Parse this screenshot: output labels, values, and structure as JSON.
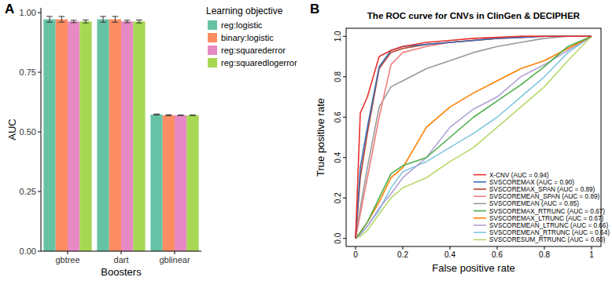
{
  "chart_data": [
    {
      "type": "bar",
      "annotations": [
        "A"
      ],
      "x_label": "Boosters",
      "y_label": "AUC",
      "legend_title": "Learning objective",
      "legend": "right",
      "grid": false,
      "categories": [
        "gbtree",
        "dart",
        "gblinear"
      ],
      "ylim": [
        0,
        1.02
      ],
      "yticks": [
        {
          "value": 0,
          "label": "0.00"
        },
        {
          "value": 0.25,
          "label": "0.25"
        },
        {
          "value": 0.5,
          "label": "0.50"
        },
        {
          "value": 0.75,
          "label": "0.75"
        },
        {
          "value": 1,
          "label": "1.00"
        }
      ],
      "series": [
        {
          "name": "reg:logistic",
          "color": "#66c2a5",
          "values": [
            0.972,
            0.972,
            0.573
          ],
          "errors": [
            0.012,
            0.012,
            0.002
          ]
        },
        {
          "name": "binary:logistic",
          "color": "#fc8d62",
          "values": [
            0.972,
            0.972,
            0.57
          ],
          "errors": [
            0.012,
            0.012,
            0.002
          ]
        },
        {
          "name": "reg:squarederror",
          "color": "#e78ac3",
          "values": [
            0.963,
            0.963,
            0.57
          ],
          "errors": [
            0.005,
            0.005,
            0.001
          ]
        },
        {
          "name": "reg:squaredlogerror",
          "color": "#a6d854",
          "values": [
            0.963,
            0.963,
            0.57
          ],
          "errors": [
            0.006,
            0.006,
            0.001
          ]
        }
      ]
    },
    {
      "type": "line",
      "annotations": [
        "B"
      ],
      "title": "The ROC curve for CNVs in ClinGen & DECIPHER",
      "x_label": "False positive rate",
      "y_label": "True positive rate",
      "legend": "bottom-right",
      "grid": false,
      "xlim": [
        -0.04,
        1.04
      ],
      "ylim": [
        -0.04,
        1.04
      ],
      "xticks": [
        0,
        {
          "value": 0.2,
          "label": "0.2"
        },
        {
          "value": 0.4,
          "label": "0.4"
        },
        {
          "value": 0.6,
          "label": "0.6"
        },
        {
          "value": 0.8,
          "label": "0.8"
        },
        1
      ],
      "yticks": [
        {
          "value": 0,
          "label": "0.0"
        },
        {
          "value": 0.2,
          "label": "0.2"
        },
        {
          "value": 0.4,
          "label": "0.4"
        },
        {
          "value": 0.6,
          "label": "0.6"
        },
        {
          "value": 0.8,
          "label": "0.8"
        },
        {
          "value": 1,
          "label": "1.0"
        }
      ],
      "x": [
        0,
        0.02,
        0.05,
        0.1,
        0.15,
        0.2,
        0.3,
        0.4,
        0.5,
        0.6,
        0.7,
        0.8,
        0.9,
        1
      ],
      "series": [
        {
          "name": "X-CNV (AUC = 0.94)",
          "color": "#e8312f",
          "values": [
            0,
            0.62,
            0.7,
            0.9,
            0.93,
            0.95,
            0.97,
            0.98,
            0.99,
            0.995,
            1,
            1,
            1,
            1
          ]
        },
        {
          "name": "SVSCOREMAX (AUC = 0.90)",
          "color": "#3a6fb5",
          "values": [
            0,
            0.35,
            0.55,
            0.85,
            0.93,
            0.95,
            0.96,
            0.97,
            0.98,
            0.99,
            0.995,
            1,
            1,
            1
          ]
        },
        {
          "name": "SVSCOREMAX_SPAN (AUC = 0.89)",
          "color": "#b5452c",
          "values": [
            0,
            0.3,
            0.52,
            0.84,
            0.92,
            0.94,
            0.96,
            0.97,
            0.98,
            0.99,
            0.995,
            1,
            1,
            1
          ]
        },
        {
          "name": "SVSCOREMEAN_SPAN (AUC = 0.89)",
          "color": "#f08080",
          "values": [
            0,
            0.12,
            0.3,
            0.6,
            0.86,
            0.92,
            0.95,
            0.97,
            0.98,
            0.99,
            1,
            1,
            1,
            1
          ]
        },
        {
          "name": "SVSCOREMEAN (AUC = 0.85)",
          "color": "#999999",
          "values": [
            0,
            0.15,
            0.35,
            0.65,
            0.75,
            0.78,
            0.84,
            0.88,
            0.92,
            0.95,
            0.97,
            0.99,
            1,
            1
          ]
        },
        {
          "name": "SVSCOREMAX_RTRUNC (AUC = 0.67)",
          "color": "#4daf4a",
          "values": [
            0,
            0.03,
            0.08,
            0.2,
            0.32,
            0.36,
            0.4,
            0.5,
            0.6,
            0.68,
            0.76,
            0.85,
            0.95,
            1
          ]
        },
        {
          "name": "SVSCOREMAX_LTRUNC (AUC = 0.67)",
          "color": "#ff7f00",
          "values": [
            0,
            0.03,
            0.08,
            0.18,
            0.3,
            0.35,
            0.55,
            0.65,
            0.72,
            0.78,
            0.84,
            0.88,
            0.94,
            1
          ]
        },
        {
          "name": "SVSCOREMEAN_LTRUNC (AUC = 0.66)",
          "color": "#b3a2d6",
          "values": [
            0,
            0.02,
            0.06,
            0.15,
            0.22,
            0.3,
            0.4,
            0.55,
            0.64,
            0.7,
            0.8,
            0.86,
            0.93,
            1
          ]
        },
        {
          "name": "SVSCOREMEAN_RTRUNC (AUC = 0.64)",
          "color": "#7fc6e0",
          "values": [
            0,
            0.02,
            0.06,
            0.14,
            0.25,
            0.33,
            0.38,
            0.45,
            0.52,
            0.6,
            0.7,
            0.8,
            0.92,
            1
          ]
        },
        {
          "name": "SVSCORESUM_RTRUNC (AUC = 0.60)",
          "color": "#b8d96b",
          "values": [
            0,
            0.01,
            0.04,
            0.12,
            0.2,
            0.25,
            0.3,
            0.38,
            0.45,
            0.55,
            0.65,
            0.75,
            0.88,
            1
          ]
        }
      ]
    }
  ]
}
